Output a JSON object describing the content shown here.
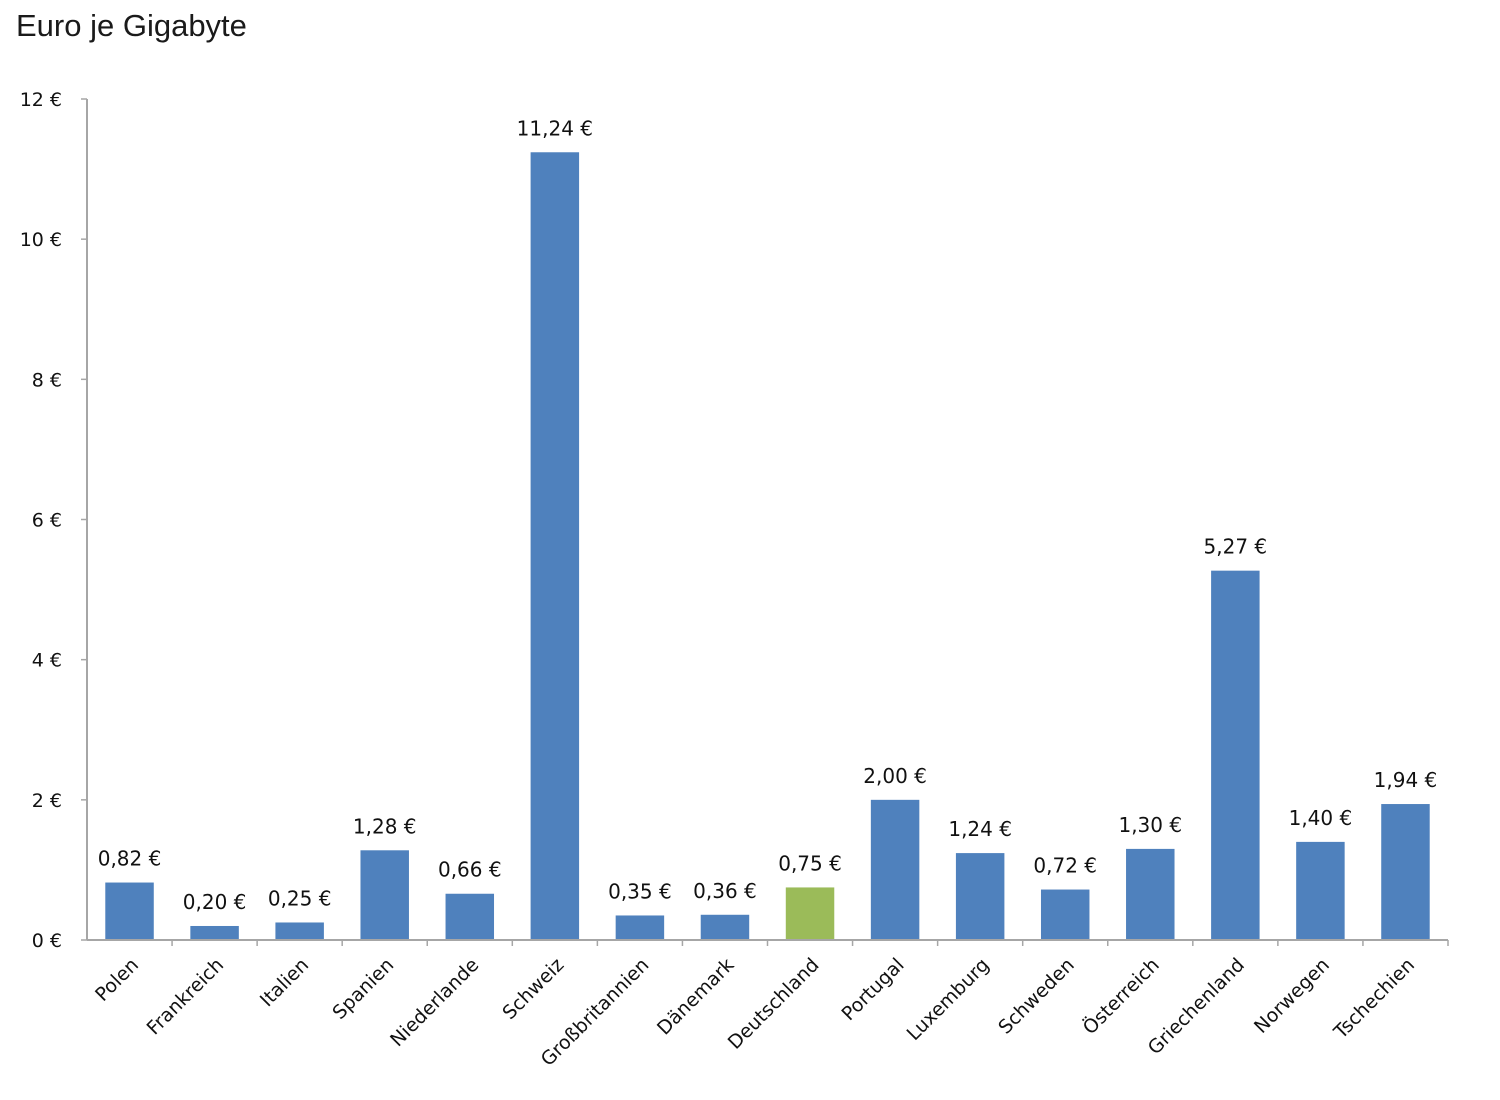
{
  "chart_data": {
    "type": "bar",
    "title": "Euro je Gigabyte",
    "xlabel": "",
    "ylabel": "",
    "ylim": [
      0,
      12
    ],
    "yticks": [
      "0 €",
      "2 €",
      "4 €",
      "6 €",
      "8 €",
      "10 €",
      "12 €"
    ],
    "ytick_values": [
      0,
      2,
      4,
      6,
      8,
      10,
      12
    ],
    "grid": false,
    "legend": "none",
    "categories": [
      "Polen",
      "Frankreich",
      "Italien",
      "Spanien",
      "Niederlande",
      "Schweiz",
      "Großbritannien",
      "Dänemark",
      "Deutschland",
      "Portugal",
      "Luxemburg",
      "Schweden",
      "Österreich",
      "Griechenland",
      "Norwegen",
      "Tschechien"
    ],
    "values": [
      0.82,
      0.2,
      0.25,
      1.28,
      0.66,
      11.24,
      0.35,
      0.36,
      0.75,
      2.0,
      1.24,
      0.72,
      1.3,
      5.27,
      1.4,
      1.94
    ],
    "value_labels": [
      "0,82 €",
      "0,20 €",
      "0,25 €",
      "1,28 €",
      "0,66 €",
      "11,24 €",
      "0,35 €",
      "0,36 €",
      "0,75 €",
      "2,00 €",
      "1,24 €",
      "0,72 €",
      "1,30 €",
      "5,27 €",
      "1,40 €",
      "1,94 €"
    ],
    "colors": {
      "default": "#4f81bd",
      "highlight": "#9bbb59",
      "axis": "#a6a6a6"
    },
    "highlight_category": "Deutschland"
  }
}
